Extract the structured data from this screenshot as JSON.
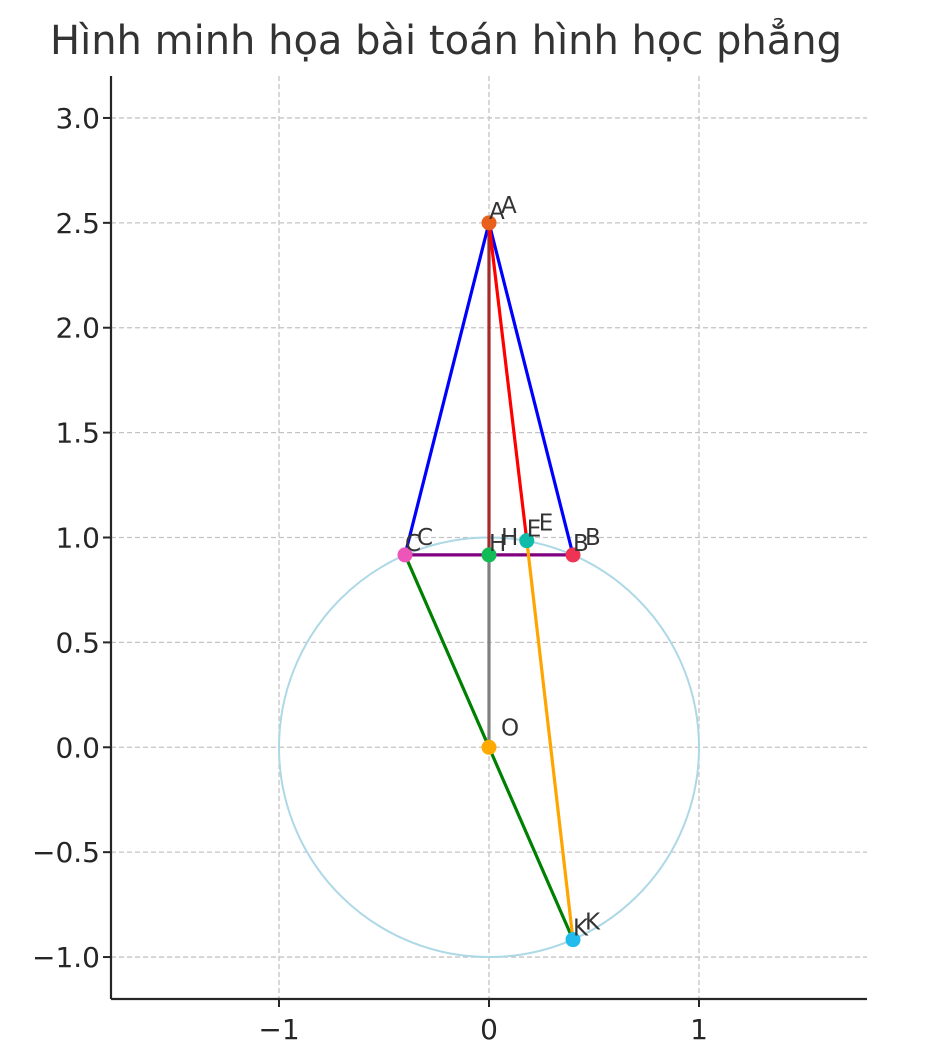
{
  "chart_data": {
    "type": "scatter",
    "title": "Hình minh họa bài toán hình học phẳng",
    "xlabel": "",
    "ylabel": "",
    "xlim": [
      -1.8,
      1.8
    ],
    "ylim": [
      -1.2,
      3.2
    ],
    "xticks": [
      -1,
      0,
      1
    ],
    "xtick_labels": [
      "−1",
      "0",
      "1"
    ],
    "yticks": [
      3.0,
      2.5,
      2.0,
      1.5,
      1.0,
      0.5,
      0.0,
      -0.5,
      -1.0
    ],
    "ytick_labels": [
      "3.0",
      "2.5",
      "2.0",
      "1.5",
      "1.0",
      "0.5",
      "0.0",
      "−0.5",
      "−1.0"
    ],
    "grid": true,
    "circle": {
      "center": [
        0,
        0
      ],
      "radius": 1,
      "color": "#add8e6"
    },
    "segments": [
      {
        "from": "A",
        "to": "C",
        "color": "#0000ff"
      },
      {
        "from": "A",
        "to": "B",
        "color": "#0000ff"
      },
      {
        "from": "C",
        "to": "B",
        "color": "#800080"
      },
      {
        "from": "A",
        "to": "H",
        "color": "#a52a2a"
      },
      {
        "from": "A",
        "to": "E",
        "color": "#ff0000"
      },
      {
        "from": "H",
        "to": "O",
        "color": "#808080"
      },
      {
        "from": "C",
        "to": "K",
        "color": "#008000"
      },
      {
        "from": "E",
        "to": "K",
        "color": "#ffa500"
      }
    ],
    "points": [
      {
        "name": "A",
        "x": 0.0,
        "y": 2.5,
        "color": "#e8601c",
        "labels": [
          "A",
          "A"
        ]
      },
      {
        "name": "B",
        "x": 0.4,
        "y": 0.917,
        "color": "#ee3355",
        "labels": [
          "B",
          "B"
        ]
      },
      {
        "name": "C",
        "x": -0.4,
        "y": 0.917,
        "color": "#ee55bb",
        "labels": [
          "C",
          "C"
        ]
      },
      {
        "name": "H",
        "x": 0.0,
        "y": 0.917,
        "color": "#11bb55",
        "labels": [
          "H",
          "H"
        ]
      },
      {
        "name": "E",
        "x": 0.18,
        "y": 0.985,
        "color": "#11bbaa",
        "labels": [
          "E",
          "E"
        ]
      },
      {
        "name": "O",
        "x": 0.0,
        "y": 0.0,
        "color": "#ffaa00",
        "labels": [
          "O"
        ]
      },
      {
        "name": "K",
        "x": 0.4,
        "y": -0.917,
        "color": "#22bbee",
        "labels": [
          "K",
          "K"
        ]
      }
    ]
  }
}
